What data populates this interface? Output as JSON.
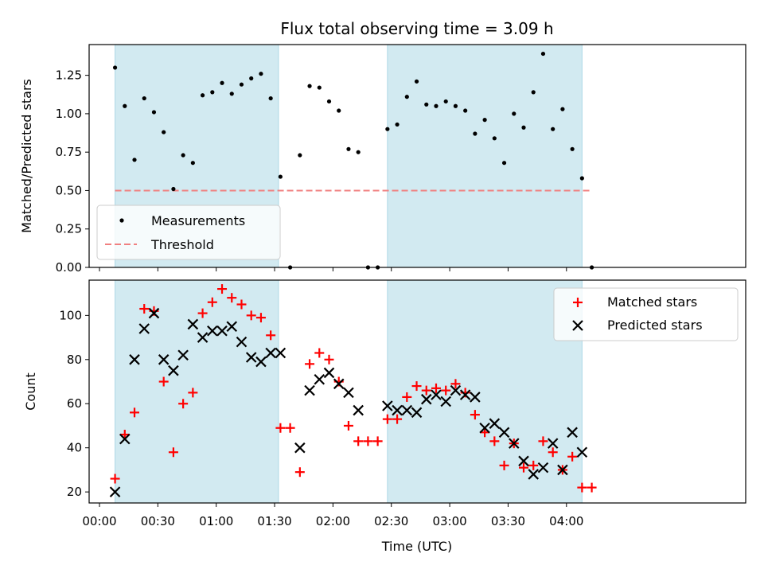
{
  "chart_data": [
    {
      "type": "scatter",
      "title": "Flux total observing time = 3.09 h",
      "ylabel": "Matched/Predicted stars",
      "xlabel": "",
      "ylim": [
        0,
        1.45
      ],
      "yticks": [
        "0.00",
        "0.25",
        "0.50",
        "0.75",
        "1.00",
        "1.25"
      ],
      "shaded_intervals": [
        [
          "00:08",
          "01:32"
        ],
        [
          "02:28",
          "04:08"
        ]
      ],
      "shade_color": "#add8e6",
      "threshold": 0.5,
      "threshold_color": "#ff0000",
      "legend_position": "lower-left",
      "series": [
        {
          "name": "Measurements",
          "marker": "dot",
          "color": "#000000",
          "x": [
            "00:08",
            "00:13",
            "00:18",
            "00:23",
            "00:28",
            "00:33",
            "00:38",
            "00:43",
            "00:48",
            "00:53",
            "00:58",
            "01:03",
            "01:08",
            "01:13",
            "01:18",
            "01:23",
            "01:28",
            "01:33",
            "01:38",
            "01:43",
            "01:48",
            "01:53",
            "01:58",
            "02:03",
            "02:08",
            "02:13",
            "02:18",
            "02:23",
            "02:28",
            "02:33",
            "02:38",
            "02:43",
            "02:48",
            "02:53",
            "02:58",
            "03:03",
            "03:08",
            "03:13",
            "03:18",
            "03:23",
            "03:28",
            "03:33",
            "03:38",
            "03:43",
            "03:48",
            "03:53",
            "03:58",
            "04:03",
            "04:08",
            "04:13"
          ],
          "y": [
            1.3,
            1.05,
            0.7,
            1.1,
            1.01,
            0.88,
            0.51,
            0.73,
            0.68,
            1.12,
            1.14,
            1.2,
            1.13,
            1.19,
            1.23,
            1.26,
            1.1,
            0.59,
            0.0,
            0.73,
            1.18,
            1.17,
            1.08,
            1.02,
            0.77,
            0.75,
            0.0,
            0.0,
            0.9,
            0.93,
            1.11,
            1.21,
            1.06,
            1.05,
            1.08,
            1.05,
            1.02,
            0.87,
            0.96,
            0.84,
            0.68,
            1.0,
            0.91,
            1.14,
            1.39,
            0.9,
            1.03,
            0.77,
            0.58,
            0.0
          ]
        },
        {
          "name": "Threshold",
          "type": "line",
          "style": "dashed",
          "color": "#f08080",
          "x": [
            "00:08",
            "04:13"
          ],
          "y": [
            0.5,
            0.5
          ]
        }
      ]
    },
    {
      "type": "scatter",
      "title": "",
      "xlabel": "Time (UTC)",
      "ylabel": "Count",
      "ylim": [
        15,
        116
      ],
      "yticks": [
        "20",
        "40",
        "60",
        "80",
        "100"
      ],
      "xticks": [
        "00:00",
        "00:30",
        "01:00",
        "01:30",
        "02:00",
        "02:30",
        "03:00",
        "03:30",
        "04:00"
      ],
      "shaded_intervals": [
        [
          "00:08",
          "01:32"
        ],
        [
          "02:28",
          "04:08"
        ]
      ],
      "legend_position": "top-right",
      "series": [
        {
          "name": "Matched stars",
          "marker": "plus",
          "color": "#ff0000",
          "x": [
            "00:08",
            "00:13",
            "00:18",
            "00:23",
            "00:28",
            "00:33",
            "00:38",
            "00:43",
            "00:48",
            "00:53",
            "00:58",
            "01:03",
            "01:08",
            "01:13",
            "01:18",
            "01:23",
            "01:28",
            "01:33",
            "01:38",
            "01:43",
            "01:48",
            "01:53",
            "01:58",
            "02:03",
            "02:08",
            "02:13",
            "02:18",
            "02:23",
            "02:28",
            "02:33",
            "02:38",
            "02:43",
            "02:48",
            "02:53",
            "02:58",
            "03:03",
            "03:08",
            "03:13",
            "03:18",
            "03:23",
            "03:28",
            "03:33",
            "03:38",
            "03:43",
            "03:48",
            "03:53",
            "03:58",
            "04:03",
            "04:08",
            "04:13"
          ],
          "y": [
            26,
            46,
            56,
            103,
            102,
            70,
            38,
            60,
            65,
            101,
            106,
            112,
            108,
            105,
            100,
            99,
            91,
            49,
            49,
            29,
            78,
            83,
            80,
            70,
            50,
            43,
            43,
            43,
            53,
            53,
            63,
            68,
            66,
            67,
            66,
            69,
            65,
            55,
            47,
            43,
            32,
            42,
            31,
            32,
            43,
            38,
            30,
            36,
            22,
            22
          ]
        },
        {
          "name": "Predicted stars",
          "marker": "x",
          "color": "#000000",
          "x": [
            "00:08",
            "00:13",
            "00:18",
            "00:23",
            "00:28",
            "00:33",
            "00:38",
            "00:43",
            "00:48",
            "00:53",
            "00:58",
            "01:03",
            "01:08",
            "01:13",
            "01:18",
            "01:23",
            "01:28",
            "01:33",
            "01:43",
            "01:48",
            "01:53",
            "01:58",
            "02:03",
            "02:08",
            "02:13",
            "02:28",
            "02:33",
            "02:38",
            "02:43",
            "02:48",
            "02:53",
            "02:58",
            "03:03",
            "03:08",
            "03:13",
            "03:18",
            "03:23",
            "03:28",
            "03:33",
            "03:38",
            "03:43",
            "03:48",
            "03:53",
            "03:58",
            "04:03",
            "04:08"
          ],
          "y": [
            20,
            44,
            80,
            94,
            101,
            80,
            75,
            82,
            96,
            90,
            93,
            93,
            95,
            88,
            81,
            79,
            83,
            83,
            40,
            66,
            71,
            74,
            69,
            65,
            57,
            59,
            57,
            57,
            56,
            62,
            64,
            61,
            66,
            64,
            63,
            49,
            51,
            47,
            42,
            34,
            28,
            31,
            42,
            30,
            47,
            38
          ]
        }
      ]
    }
  ]
}
